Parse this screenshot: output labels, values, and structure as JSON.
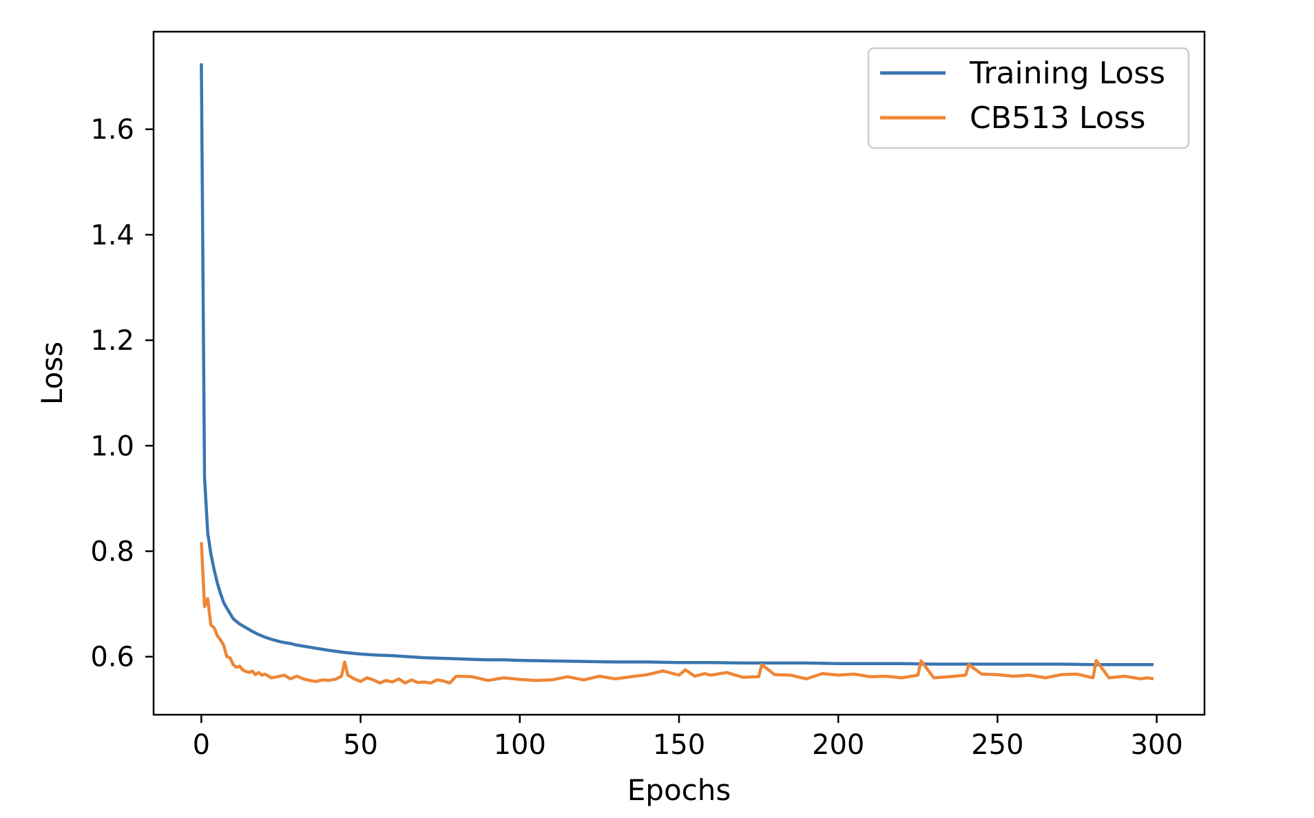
{
  "chart_data": {
    "type": "line",
    "title": "",
    "xlabel": "Epochs",
    "ylabel": "Loss",
    "xlim": [
      -15,
      315
    ],
    "ylim": [
      0.49,
      1.785
    ],
    "xticks": [
      0,
      50,
      100,
      150,
      200,
      250,
      300
    ],
    "xtick_labels": [
      "0",
      "50",
      "100",
      "150",
      "200",
      "250",
      "300"
    ],
    "yticks": [
      0.6,
      0.8,
      1.0,
      1.2,
      1.4,
      1.6
    ],
    "ytick_labels": [
      "0.6",
      "0.8",
      "1.0",
      "1.2",
      "1.4",
      "1.6"
    ],
    "grid": false,
    "legend_position": "top-right",
    "series": [
      {
        "name": "Training Loss",
        "color": "#3a75b0",
        "x": [
          0,
          1,
          2,
          3,
          4,
          5,
          6,
          7,
          8,
          10,
          12,
          14,
          16,
          18,
          20,
          22,
          25,
          28,
          30,
          32,
          35,
          38,
          40,
          45,
          50,
          55,
          60,
          65,
          70,
          75,
          80,
          85,
          90,
          95,
          100,
          110,
          120,
          130,
          140,
          150,
          160,
          170,
          180,
          190,
          200,
          210,
          220,
          230,
          240,
          250,
          260,
          270,
          280,
          290,
          295,
          299
        ],
        "values": [
          1.725,
          0.94,
          0.835,
          0.795,
          0.765,
          0.74,
          0.72,
          0.703,
          0.692,
          0.672,
          0.662,
          0.655,
          0.648,
          0.642,
          0.637,
          0.633,
          0.628,
          0.625,
          0.622,
          0.62,
          0.617,
          0.614,
          0.612,
          0.608,
          0.605,
          0.603,
          0.602,
          0.6,
          0.598,
          0.597,
          0.596,
          0.595,
          0.594,
          0.594,
          0.593,
          0.592,
          0.591,
          0.59,
          0.59,
          0.589,
          0.589,
          0.588,
          0.588,
          0.588,
          0.587,
          0.587,
          0.587,
          0.586,
          0.586,
          0.586,
          0.586,
          0.586,
          0.585,
          0.585,
          0.585,
          0.585
        ]
      },
      {
        "name": "CB513 Loss",
        "color": "#ef8636",
        "x": [
          0,
          1,
          2,
          3,
          4,
          5,
          6,
          7,
          8,
          9,
          10,
          11,
          12,
          13,
          14,
          15,
          16,
          17,
          18,
          19,
          20,
          22,
          24,
          26,
          28,
          30,
          32,
          34,
          36,
          38,
          40,
          42,
          44,
          45,
          46,
          48,
          50,
          52,
          54,
          56,
          58,
          60,
          62,
          64,
          66,
          68,
          70,
          72,
          74,
          76,
          78,
          80,
          85,
          90,
          95,
          100,
          105,
          110,
          115,
          120,
          125,
          130,
          135,
          140,
          145,
          150,
          152,
          155,
          158,
          160,
          165,
          170,
          175,
          176,
          180,
          185,
          190,
          195,
          200,
          205,
          210,
          215,
          220,
          225,
          226,
          230,
          235,
          240,
          241,
          245,
          250,
          255,
          260,
          265,
          270,
          275,
          280,
          281,
          285,
          290,
          295,
          297,
          299
        ],
        "values": [
          0.817,
          0.695,
          0.71,
          0.66,
          0.655,
          0.64,
          0.632,
          0.622,
          0.6,
          0.598,
          0.585,
          0.58,
          0.582,
          0.575,
          0.572,
          0.57,
          0.573,
          0.566,
          0.57,
          0.565,
          0.567,
          0.56,
          0.562,
          0.565,
          0.558,
          0.563,
          0.558,
          0.555,
          0.553,
          0.556,
          0.555,
          0.557,
          0.563,
          0.59,
          0.565,
          0.558,
          0.553,
          0.56,
          0.556,
          0.55,
          0.555,
          0.552,
          0.558,
          0.55,
          0.556,
          0.551,
          0.552,
          0.55,
          0.556,
          0.554,
          0.55,
          0.563,
          0.562,
          0.555,
          0.56,
          0.557,
          0.555,
          0.556,
          0.562,
          0.556,
          0.563,
          0.558,
          0.562,
          0.566,
          0.573,
          0.565,
          0.575,
          0.563,
          0.568,
          0.565,
          0.57,
          0.561,
          0.562,
          0.585,
          0.566,
          0.565,
          0.558,
          0.568,
          0.565,
          0.567,
          0.562,
          0.563,
          0.56,
          0.565,
          0.592,
          0.56,
          0.562,
          0.565,
          0.585,
          0.567,
          0.566,
          0.563,
          0.565,
          0.56,
          0.566,
          0.567,
          0.56,
          0.593,
          0.56,
          0.563,
          0.558,
          0.56,
          0.558
        ]
      }
    ]
  }
}
